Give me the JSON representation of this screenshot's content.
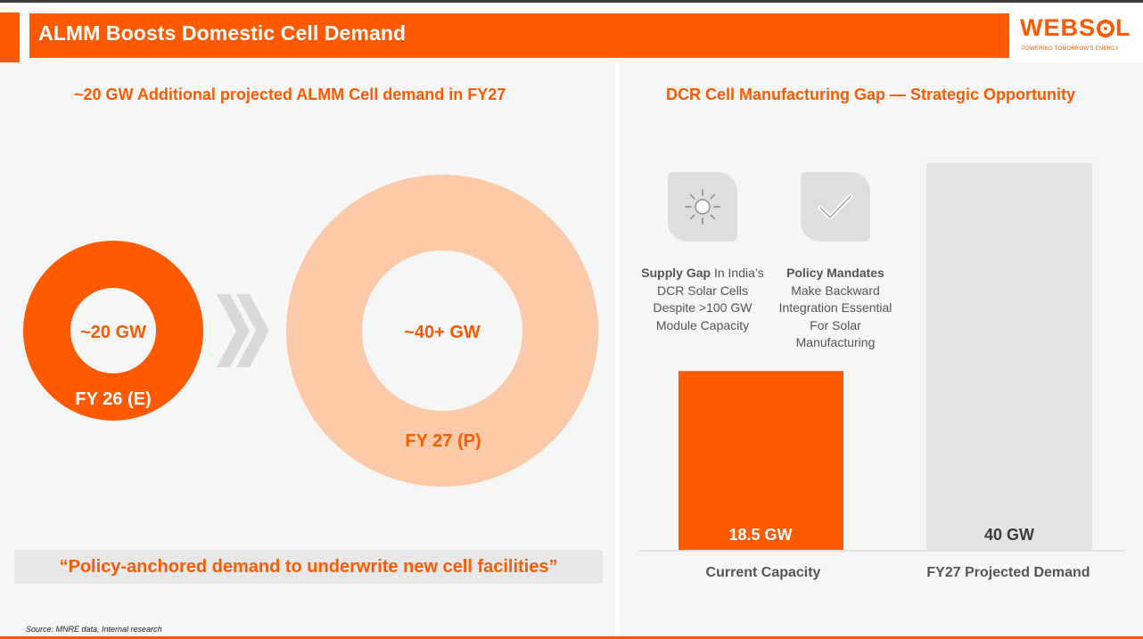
{
  "header": {
    "title": "ALMM Boosts Domestic Cell Demand",
    "logo_word_left": "WEBS",
    "logo_word_right": "L",
    "logo_tagline": "POWERING TOMORROW'S ENERGY"
  },
  "left": {
    "section_title": "~20 GW Additional projected ALMM Cell demand in FY27",
    "quote": "“Policy-anchored demand to underwrite new cell facilities”",
    "source": "Source: MNRE data, Internal research"
  },
  "right": {
    "section_title": "DCR Cell Manufacturing Gap — Strategic Opportunity",
    "points": [
      {
        "icon": "sun-icon",
        "bold": "Supply Gap",
        "text": " In India’s DCR Solar Cells Despite >100 GW Module Capacity"
      },
      {
        "icon": "checkmark-icon",
        "bold": "Policy Mandates",
        "text": " Make Backward Integration Essential For Solar Manufacturing"
      }
    ]
  },
  "colors": {
    "accent": "#ff5a00",
    "light_accent": "#fccaa8",
    "gray": "#e3e3e3",
    "panel": "#f6f6f6"
  },
  "chart_data": [
    {
      "type": "bubble",
      "title": "",
      "items": [
        {
          "label": "FY 26 (E)",
          "value_label": "~20 GW",
          "value": 20,
          "color": "#ff5a00"
        },
        {
          "label": "FY 27 (P)",
          "value_label": "~40+ GW",
          "value": 40,
          "color": "#fccaa8"
        }
      ]
    },
    {
      "type": "bar",
      "title": "",
      "categories": [
        "Current Capacity",
        "FY27 Projected Demand"
      ],
      "values": [
        18.5,
        40
      ],
      "value_labels": [
        "18.5 GW",
        "40 GW"
      ],
      "colors": [
        "#ff5a00",
        "#e3e3e3"
      ],
      "ylim": [
        0,
        40
      ]
    }
  ]
}
